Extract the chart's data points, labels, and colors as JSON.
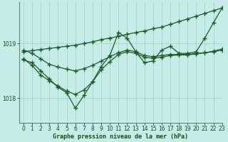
{
  "title": "Graphe pression niveau de la mer (hPa)",
  "bg_color": "#c5ece6",
  "grid_color": "#aad8d0",
  "line_color": "#1a5c28",
  "xlim": [
    -0.5,
    23
  ],
  "ylim": [
    1017.55,
    1019.75
  ],
  "yticks": [
    1018,
    1019
  ],
  "xticks": [
    0,
    1,
    2,
    3,
    4,
    5,
    6,
    7,
    8,
    9,
    10,
    11,
    12,
    13,
    14,
    15,
    16,
    17,
    18,
    19,
    20,
    21,
    22,
    23
  ],
  "series": [
    [
      1018.85,
      1018.87,
      1018.89,
      1018.91,
      1018.93,
      1018.95,
      1018.97,
      1019.0,
      1019.03,
      1019.07,
      1019.1,
      1019.13,
      1019.17,
      1019.2,
      1019.23,
      1019.27,
      1019.3,
      1019.35,
      1019.4,
      1019.45,
      1019.5,
      1019.55,
      1019.6,
      1019.65
    ],
    [
      1018.7,
      1018.65,
      1018.5,
      1018.35,
      1018.2,
      1018.1,
      1017.82,
      1018.05,
      1018.3,
      1018.58,
      1018.78,
      1019.2,
      1019.1,
      1018.85,
      1018.65,
      1018.68,
      1018.88,
      1018.95,
      1018.82,
      1018.82,
      1018.85,
      1019.1,
      1019.38,
      1019.65
    ],
    [
      1018.88,
      1018.82,
      1018.72,
      1018.62,
      1018.57,
      1018.53,
      1018.5,
      1018.54,
      1018.6,
      1018.68,
      1018.76,
      1018.83,
      1018.88,
      1018.85,
      1018.78,
      1018.76,
      1018.78,
      1018.8,
      1018.8,
      1018.8,
      1018.82,
      1018.83,
      1018.86,
      1018.9
    ],
    [
      1018.72,
      1018.6,
      1018.42,
      1018.32,
      1018.22,
      1018.13,
      1018.07,
      1018.15,
      1018.3,
      1018.52,
      1018.67,
      1018.8,
      1018.85,
      1018.82,
      1018.75,
      1018.73,
      1018.75,
      1018.78,
      1018.79,
      1018.79,
      1018.81,
      1018.83,
      1018.85,
      1018.88
    ]
  ]
}
